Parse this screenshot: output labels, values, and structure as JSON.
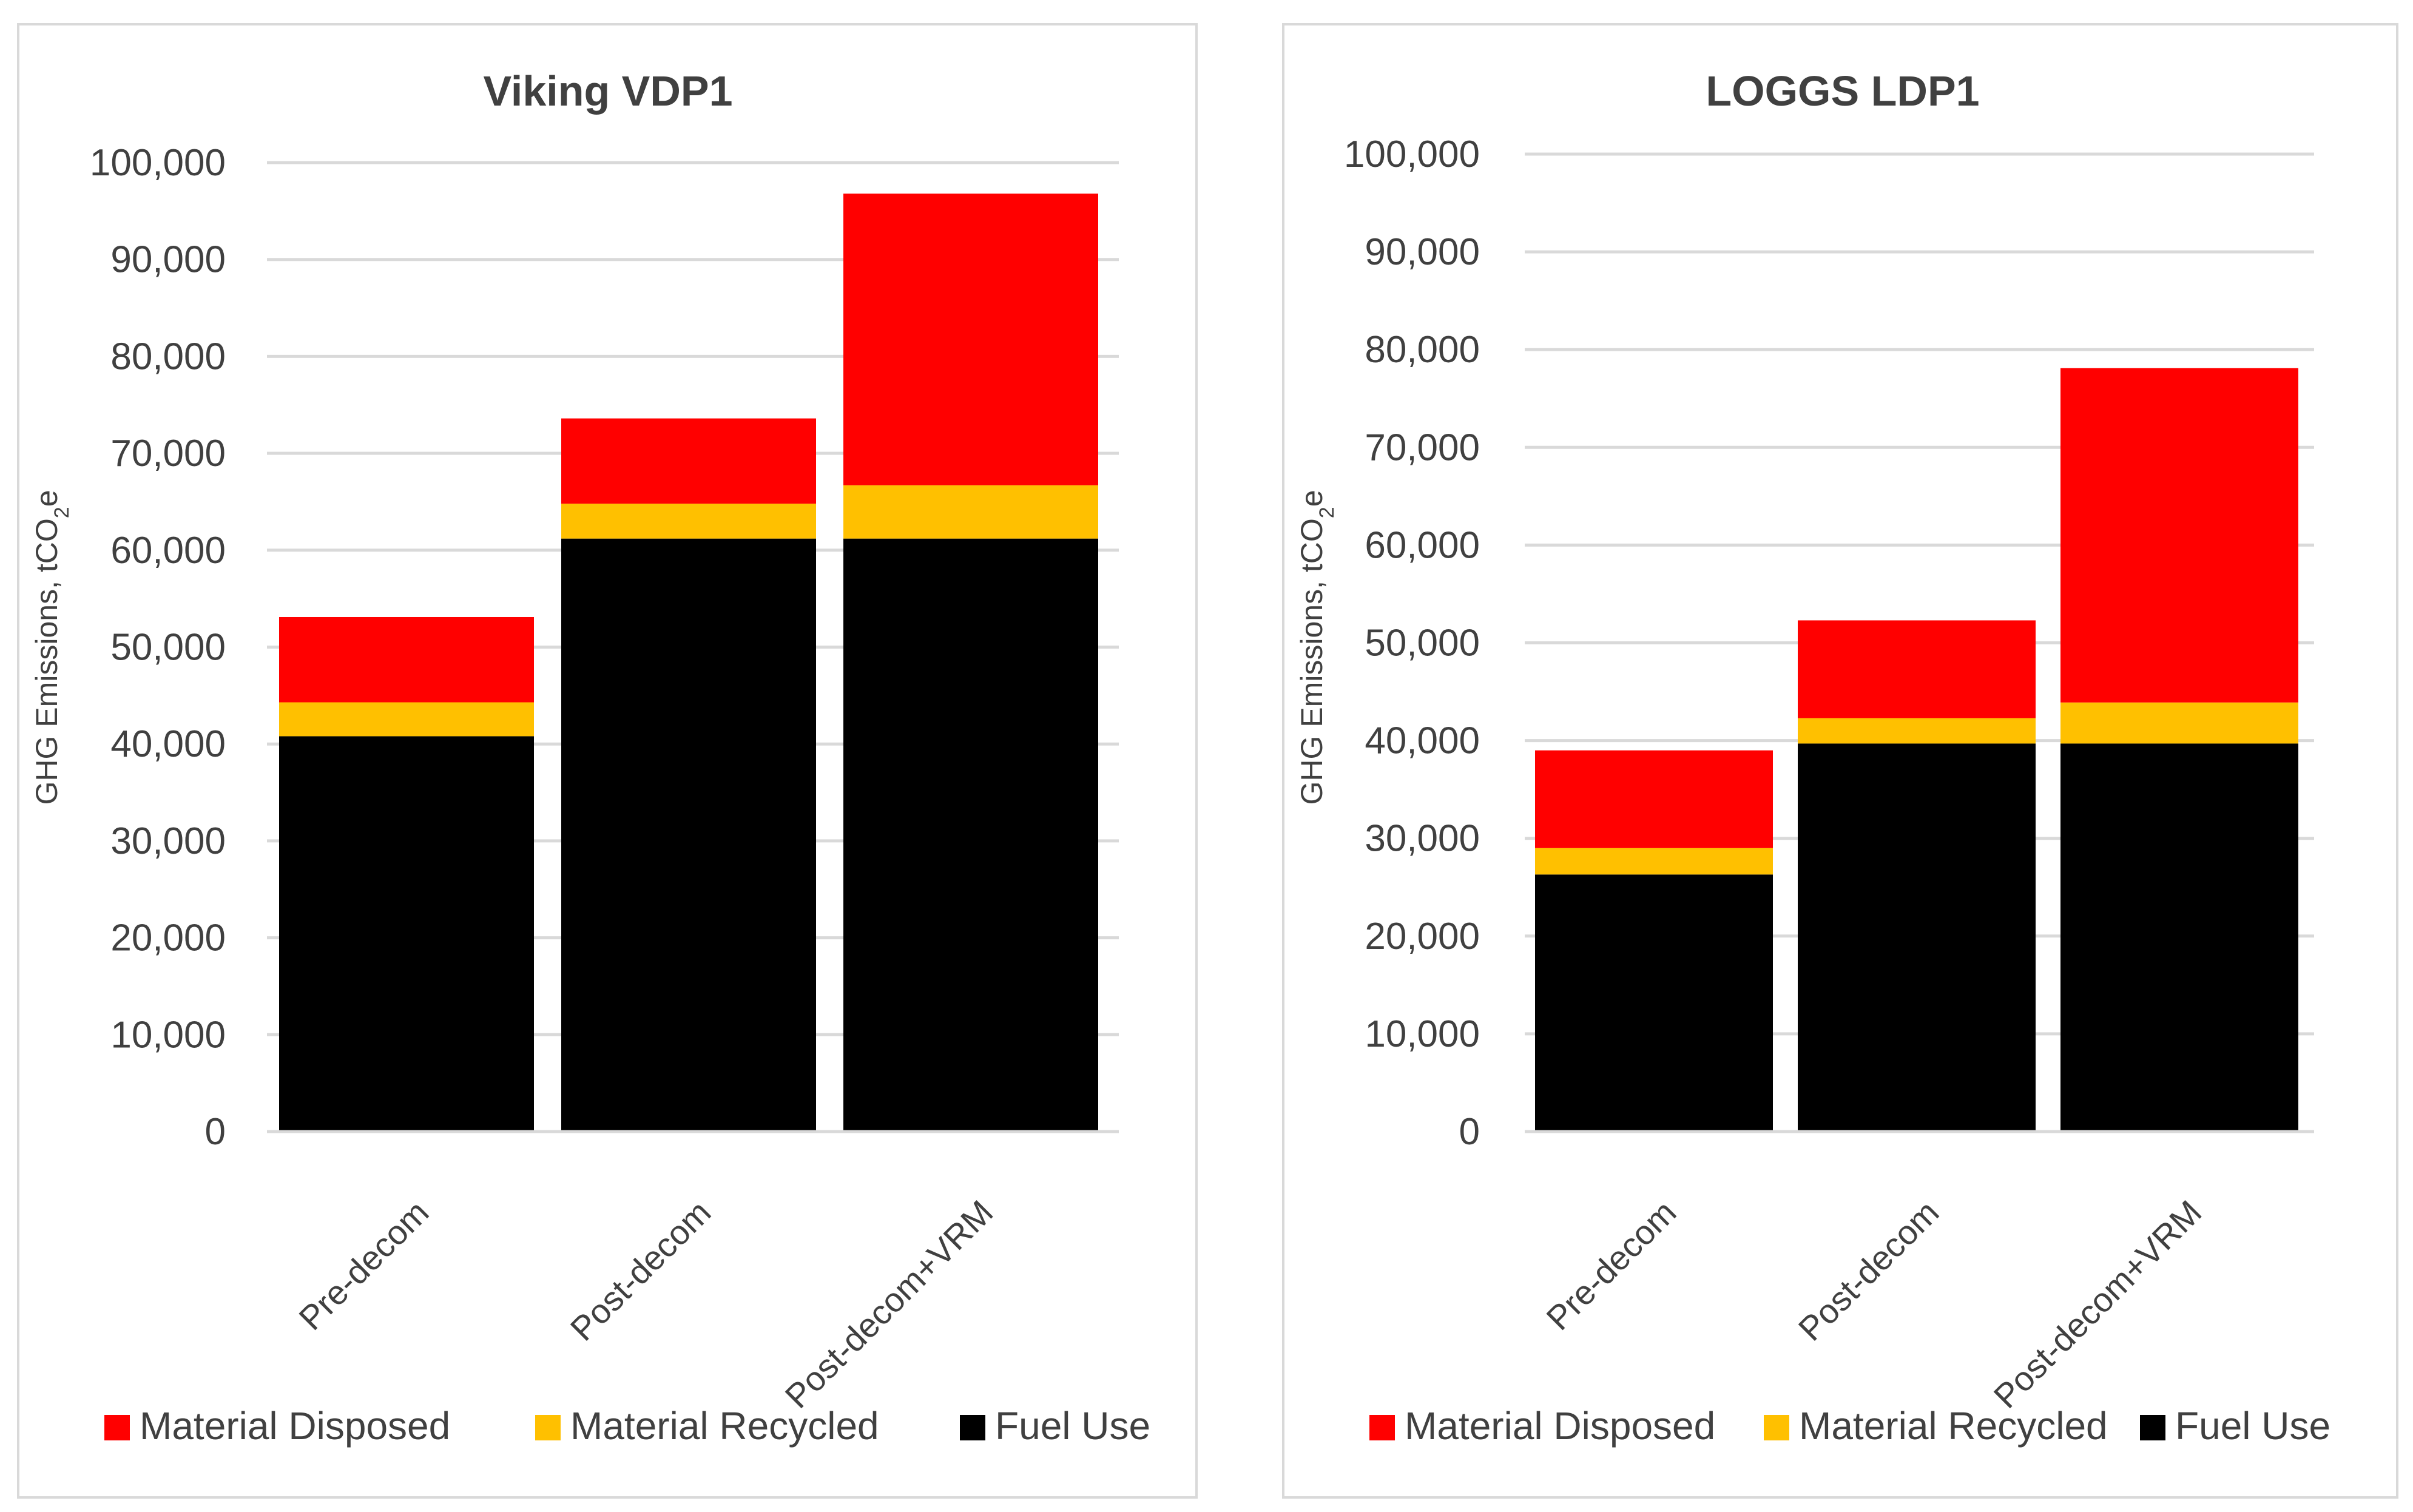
{
  "chart_data": [
    {
      "type": "bar",
      "stacked": true,
      "title": "Viking VDP1",
      "ylabel": "GHG Emissions, tCO2e",
      "ylabel_parts": [
        "GHG Emissions, tCO",
        "2",
        "e"
      ],
      "xlabel": "",
      "categories": [
        "Pre-decom",
        "Post-decom",
        "Post-decom+VRM"
      ],
      "ylim": [
        0,
        100000
      ],
      "yticks": [
        0,
        10000,
        20000,
        30000,
        40000,
        50000,
        60000,
        70000,
        80000,
        90000,
        100000
      ],
      "ytick_labels": [
        "0",
        "10,000",
        "20,000",
        "30,000",
        "40,000",
        "50,000",
        "60,000",
        "70,000",
        "80,000",
        "90,000",
        "100,000"
      ],
      "grid": true,
      "legend_position": "bottom",
      "series": [
        {
          "name": "Fuel Use",
          "color": "#000000",
          "values": [
            40800,
            61200,
            61200
          ]
        },
        {
          "name": "Material Recycled",
          "color": "#FFC000",
          "values": [
            3500,
            3600,
            5500
          ]
        },
        {
          "name": "Material Disposed",
          "color": "#FF0000",
          "values": [
            8800,
            8800,
            30100
          ]
        }
      ],
      "legend_order": [
        "Material Disposed",
        "Material Recycled",
        "Fuel Use"
      ]
    },
    {
      "type": "bar",
      "stacked": true,
      "title": "LOGGS LDP1",
      "ylabel": "GHG Emissions, tCO2e",
      "ylabel_parts": [
        "GHG Emissions, tCO",
        "2",
        "e"
      ],
      "xlabel": "",
      "categories": [
        "Pre-decom",
        "Post-decom",
        "Post-decom+VRM"
      ],
      "ylim": [
        0,
        100000
      ],
      "yticks": [
        0,
        10000,
        20000,
        30000,
        40000,
        50000,
        60000,
        70000,
        80000,
        90000,
        100000
      ],
      "ytick_labels": [
        "0",
        "10,000",
        "20,000",
        "30,000",
        "40,000",
        "50,000",
        "60,000",
        "70,000",
        "80,000",
        "90,000",
        "100,000"
      ],
      "grid": true,
      "legend_position": "bottom",
      "series": [
        {
          "name": "Fuel Use",
          "color": "#000000",
          "values": [
            26300,
            39700,
            39700
          ]
        },
        {
          "name": "Material Recycled",
          "color": "#FFC000",
          "values": [
            2700,
            2600,
            4200
          ]
        },
        {
          "name": "Material Disposed",
          "color": "#FF0000",
          "values": [
            10000,
            10000,
            34200
          ]
        }
      ],
      "legend_order": [
        "Material Disposed",
        "Material Recycled",
        "Fuel Use"
      ]
    }
  ],
  "colors": {
    "grid": "#d9d9d9",
    "text": "#404040",
    "panel_border": "#d9d9d9"
  }
}
